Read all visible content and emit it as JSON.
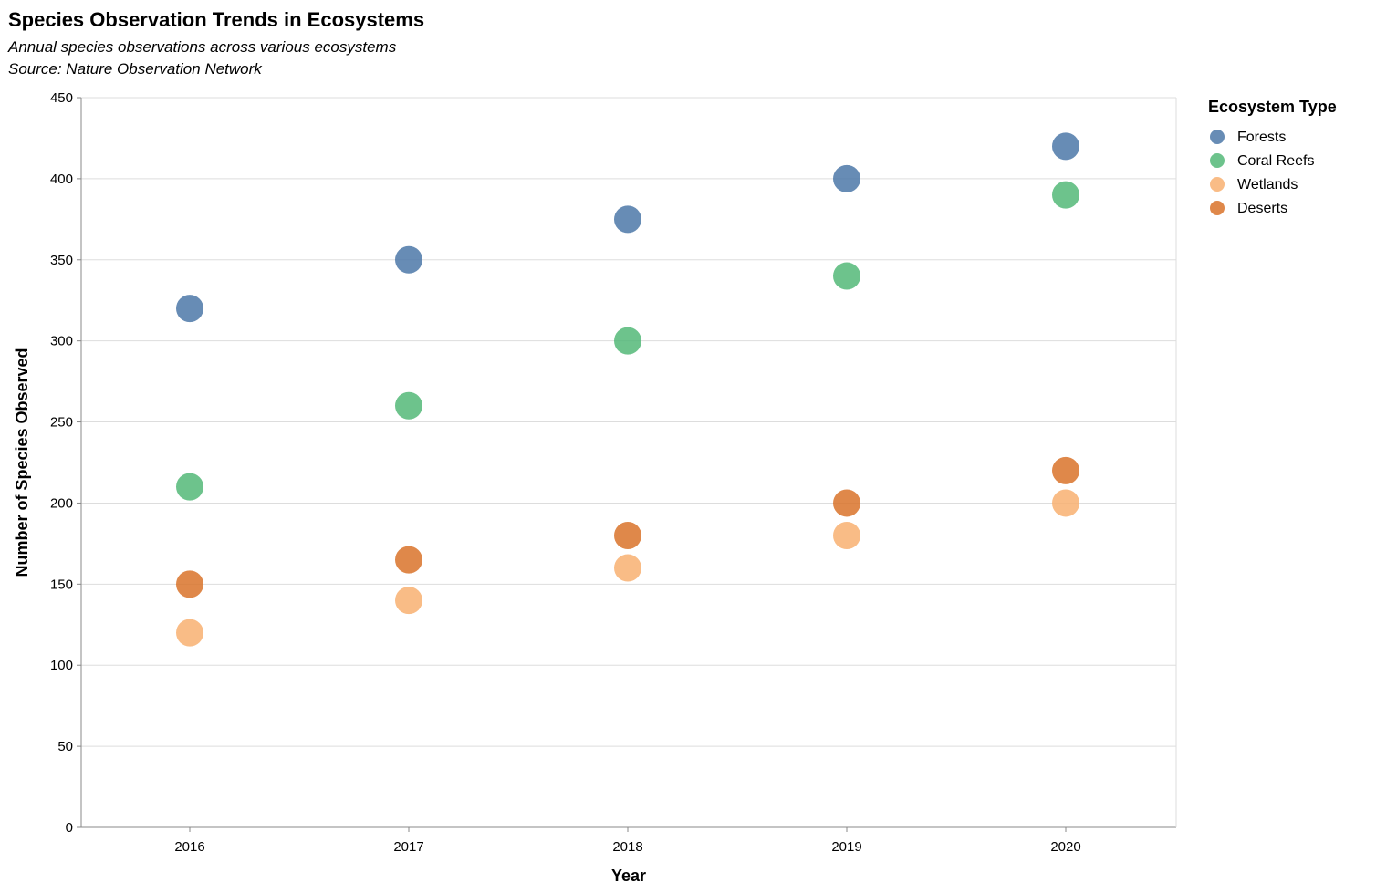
{
  "chart_data": {
    "type": "scatter",
    "title": "Species Observation Trends in Ecosystems",
    "subtitle": [
      "Annual species observations across various ecosystems",
      "Source: Nature Observation Network"
    ],
    "xlabel": "Year",
    "ylabel": "Number of Species Observed",
    "x": [
      "2016",
      "2017",
      "2018",
      "2019",
      "2020"
    ],
    "ylim": [
      0,
      450
    ],
    "yticks": [
      0,
      50,
      100,
      150,
      200,
      250,
      300,
      350,
      400,
      450
    ],
    "grid": true,
    "legend": {
      "title": "Ecosystem Type",
      "placement": "right"
    },
    "series": [
      {
        "name": "Forests",
        "color": "#4c78a8",
        "values": [
          320,
          350,
          375,
          400,
          420
        ]
      },
      {
        "name": "Coral Reefs",
        "color": "#54b878",
        "values": [
          210,
          260,
          300,
          340,
          390
        ]
      },
      {
        "name": "Wetlands",
        "color": "#f8b071",
        "values": [
          120,
          140,
          160,
          180,
          200
        ]
      },
      {
        "name": "Deserts",
        "color": "#d9732a",
        "values": [
          150,
          165,
          180,
          200,
          220
        ]
      }
    ]
  }
}
